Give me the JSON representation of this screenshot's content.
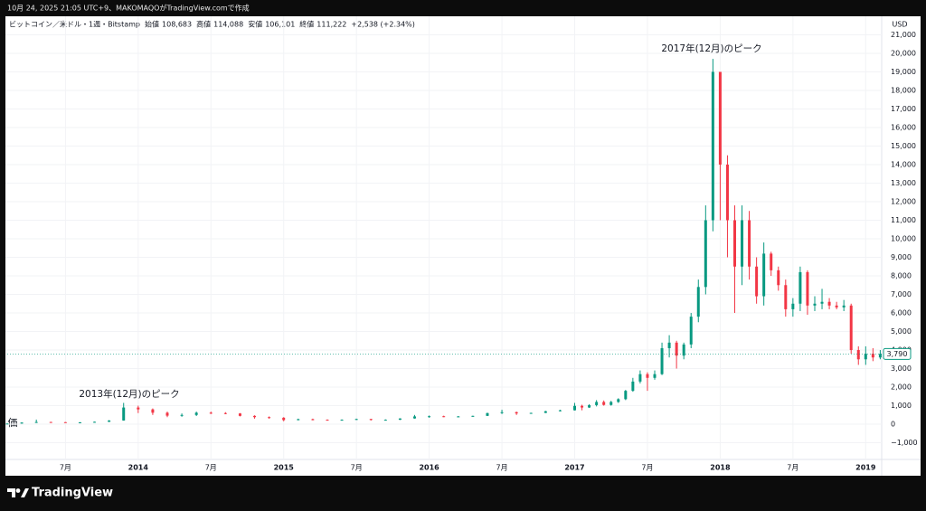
{
  "header": {
    "caption": "10月 24, 2025 21:05 UTC+9、MAKOMAQOがTradingView.comで作成",
    "symbol": "ビットコイン／米ドル・1週・Bitstamp",
    "ohlc": [
      {
        "label": "始値",
        "value": "108,683"
      },
      {
        "label": "高値",
        "value": "114,088"
      },
      {
        "label": "安値",
        "value": "106,101"
      },
      {
        "label": "終値",
        "value": "111,222"
      }
    ],
    "change": "+2,538 (+2.34%)"
  },
  "chart_data": {
    "type": "candlestick",
    "currency": "USD",
    "left_label": "価",
    "annotations": [
      "2017年(12月)のピーク",
      "2013年(12月)のピーク"
    ],
    "price_tag": "3,790",
    "up_color": "#089981",
    "down_color": "#f23645",
    "grid": true,
    "xlim": [
      2013.1,
      2019.11
    ],
    "xticks": [
      {
        "value": 2013.5,
        "label": "7月"
      },
      2014,
      {
        "value": 2014.5,
        "label": "7月"
      },
      2015,
      {
        "value": 2015.5,
        "label": "7月"
      },
      2016,
      {
        "value": 2016.5,
        "label": "7月"
      },
      2017,
      {
        "value": 2017.5,
        "label": "7月"
      },
      2018,
      {
        "value": 2018.5,
        "label": "7月"
      },
      2019
    ],
    "ylim": [
      -1900,
      21900
    ],
    "yticks": [
      {
        "value": -1000,
        "label": "−1,000"
      },
      0,
      {
        "value": 1000,
        "label": "1,000"
      },
      {
        "value": 2000,
        "label": "2,000"
      },
      {
        "value": 3000,
        "label": "3,000"
      },
      {
        "value": 4000,
        "label": "4,000"
      },
      {
        "value": 5000,
        "label": "5,000"
      },
      {
        "value": 6000,
        "label": "6,000"
      },
      {
        "value": 7000,
        "label": "7,000"
      },
      {
        "value": 8000,
        "label": "8,000"
      },
      {
        "value": 9000,
        "label": "9,000"
      },
      {
        "value": 10000,
        "label": "10,000"
      },
      {
        "value": 11000,
        "label": "11,000"
      },
      {
        "value": 12000,
        "label": "12,000"
      },
      {
        "value": 13000,
        "label": "13,000"
      },
      {
        "value": 14000,
        "label": "14,000"
      },
      {
        "value": 15000,
        "label": "15,000"
      },
      {
        "value": 16000,
        "label": "16,000"
      },
      {
        "value": 17000,
        "label": "17,000"
      },
      {
        "value": 18000,
        "label": "18,000"
      },
      {
        "value": 19000,
        "label": "19,000"
      },
      {
        "value": 20000,
        "label": "20,000"
      },
      {
        "value": 21000,
        "label": "21,000"
      }
    ],
    "x": [
      2013.1,
      2013.2,
      2013.3,
      2013.4,
      2013.5,
      2013.6,
      2013.7,
      2013.8,
      2013.9,
      2014,
      2014.1,
      2014.2,
      2014.3,
      2014.4,
      2014.5,
      2014.6,
      2014.7,
      2014.8,
      2014.9,
      2015,
      2015.1,
      2015.2,
      2015.3,
      2015.4,
      2015.5,
      2015.6,
      2015.7,
      2015.8,
      2015.9,
      2016,
      2016.1,
      2016.2,
      2016.3,
      2016.4,
      2016.5,
      2016.6,
      2016.7,
      2016.8,
      2016.9,
      2017,
      2017.05,
      2017.1,
      2017.15,
      2017.2,
      2017.25,
      2017.3,
      2017.35,
      2017.4,
      2017.45,
      2017.5,
      2017.55,
      2017.6,
      2017.65,
      2017.7,
      2017.75,
      2017.8,
      2017.85,
      2017.9,
      2017.95,
      2018,
      2018.05,
      2018.1,
      2018.15,
      2018.2,
      2018.25,
      2018.3,
      2018.35,
      2018.4,
      2018.45,
      2018.5,
      2018.55,
      2018.6,
      2018.65,
      2018.7,
      2018.75,
      2018.8,
      2018.85,
      2018.9,
      2018.95,
      2019,
      2019.05,
      2019.1
    ],
    "open": [
      25,
      35,
      90,
      120,
      110,
      90,
      100,
      130,
      200,
      900,
      800,
      620,
      460,
      500,
      620,
      600,
      580,
      450,
      380,
      350,
      220,
      270,
      240,
      230,
      240,
      280,
      230,
      240,
      310,
      420,
      430,
      420,
      420,
      450,
      600,
      650,
      580,
      610,
      700,
      750,
      990,
      900,
      1030,
      1200,
      1040,
      1200,
      1350,
      1800,
      2300,
      2700,
      2500,
      2700,
      4100,
      4400,
      3700,
      4300,
      5800,
      7400,
      11000,
      19000,
      14000,
      11000,
      8500,
      11000,
      8500,
      6900,
      9200,
      8300,
      7500,
      6200,
      6500,
      8200,
      6400,
      6500,
      6600,
      6400,
      6300,
      6400,
      4000,
      3500,
      3800,
      3600
    ],
    "high": [
      40,
      100,
      250,
      130,
      120,
      110,
      140,
      220,
      1150,
      1000,
      850,
      680,
      580,
      680,
      680,
      650,
      600,
      480,
      420,
      380,
      300,
      300,
      260,
      260,
      300,
      290,
      260,
      320,
      500,
      470,
      460,
      440,
      460,
      620,
      780,
      680,
      620,
      720,
      780,
      1150,
      1050,
      1080,
      1300,
      1280,
      1260,
      1400,
      1850,
      2500,
      2900,
      2800,
      2900,
      4400,
      4800,
      4500,
      4400,
      6000,
      7800,
      11800,
      19700,
      19000,
      14500,
      11800,
      11800,
      11500,
      9000,
      9800,
      9300,
      8500,
      7800,
      6800,
      8500,
      8300,
      6900,
      7300,
      6800,
      6600,
      6700,
      6500,
      4200,
      4200,
      4100,
      4000
    ],
    "low": [
      22,
      30,
      70,
      80,
      80,
      80,
      95,
      120,
      190,
      600,
      500,
      380,
      400,
      440,
      550,
      540,
      420,
      300,
      300,
      160,
      210,
      210,
      220,
      220,
      230,
      200,
      220,
      230,
      300,
      350,
      380,
      400,
      400,
      440,
      550,
      500,
      560,
      600,
      690,
      740,
      750,
      880,
      960,
      1000,
      1000,
      1150,
      1300,
      1750,
      2200,
      1800,
      2400,
      2650,
      3600,
      3000,
      3500,
      4100,
      5500,
      7000,
      10400,
      11000,
      9000,
      6000,
      7500,
      7800,
      6500,
      6400,
      8000,
      7200,
      5800,
      5800,
      6100,
      5900,
      6100,
      6200,
      6200,
      6200,
      6100,
      3800,
      3200,
      3200,
      3400,
      3500
    ],
    "close": [
      35,
      90,
      120,
      110,
      90,
      100,
      130,
      200,
      900,
      800,
      620,
      460,
      500,
      620,
      600,
      580,
      450,
      380,
      350,
      220,
      270,
      240,
      230,
      240,
      280,
      230,
      240,
      310,
      420,
      430,
      420,
      420,
      450,
      600,
      650,
      580,
      610,
      700,
      750,
      990,
      900,
      1030,
      1200,
      1040,
      1200,
      1350,
      1800,
      2300,
      2700,
      2500,
      2700,
      4100,
      4400,
      3700,
      4300,
      5800,
      7400,
      11000,
      19000,
      14000,
      11000,
      8500,
      11000,
      8500,
      6900,
      9200,
      8300,
      7500,
      6200,
      6500,
      8200,
      6400,
      6500,
      6600,
      6400,
      6300,
      6400,
      4000,
      3500,
      3800,
      3600,
      3790
    ]
  }
}
